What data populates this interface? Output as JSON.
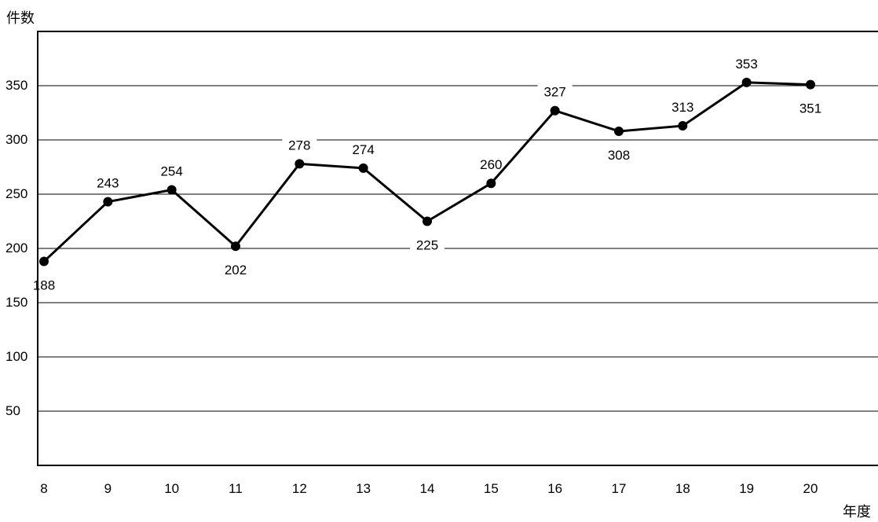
{
  "chart_data": {
    "type": "line",
    "ylabel": "件数",
    "xlabel": "年度",
    "categories": [
      "8",
      "9",
      "10",
      "11",
      "12",
      "13",
      "14",
      "15",
      "16",
      "17",
      "18",
      "19",
      "20"
    ],
    "series": [
      {
        "values": [
          188,
          243,
          254,
          202,
          278,
          274,
          225,
          260,
          327,
          308,
          313,
          353,
          351
        ]
      }
    ],
    "ylim": [
      0,
      400
    ],
    "yticks": [
      50,
      100,
      150,
      200,
      250,
      300,
      350
    ],
    "grid": true,
    "colors": {
      "line": "#000000",
      "grid": "#000000",
      "marker": "#000000"
    }
  }
}
